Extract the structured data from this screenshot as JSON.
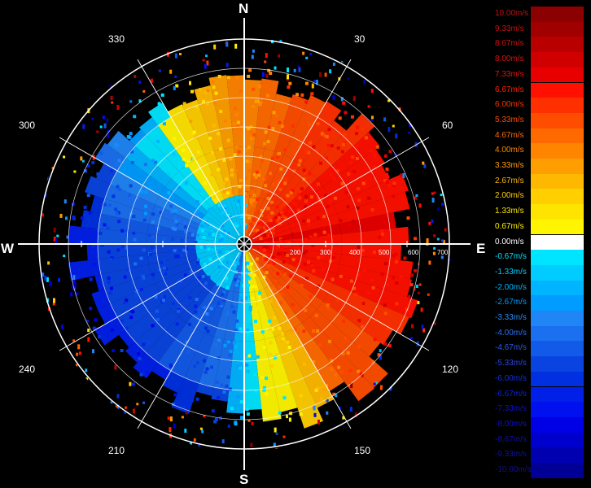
{
  "compass": {
    "north": "N",
    "east": "E",
    "south": "S",
    "west": "W"
  },
  "bearings": {
    "b30": "30",
    "b60": "60",
    "b120": "120",
    "b150": "150",
    "b210": "210",
    "b240": "240",
    "b300": "300",
    "b330": "330"
  },
  "ranges": {
    "r200": "200",
    "r300": "300",
    "r400": "400",
    "r500": "500",
    "r600": "600",
    "r700": "700"
  },
  "legend": [
    {
      "label": "10.00m/s",
      "color": "#8b0000",
      "text_color": "#c41010"
    },
    {
      "label": "9.33m/s",
      "color": "#a10000",
      "text_color": "#c41010"
    },
    {
      "label": "8.67m/s",
      "color": "#b80000",
      "text_color": "#d01010"
    },
    {
      "label": "8.00m/s",
      "color": "#d00000",
      "text_color": "#dc1010"
    },
    {
      "label": "7.33m/s",
      "color": "#e80000",
      "text_color": "#e81010"
    },
    {
      "label": "6.67m/s",
      "color": "#ff1000",
      "text_color": "#ff2000"
    },
    {
      "label": "6.00m/s",
      "color": "#ff3000",
      "text_color": "#ff3300"
    },
    {
      "label": "5.33m/s",
      "color": "#ff4d00",
      "text_color": "#ff4d00"
    },
    {
      "label": "4.67m/s",
      "color": "#ff6a00",
      "text_color": "#ff6a00"
    },
    {
      "label": "4.00m/s",
      "color": "#ff8400",
      "text_color": "#ff8800"
    },
    {
      "label": "3.33m/s",
      "color": "#ff9e00",
      "text_color": "#ffa000"
    },
    {
      "label": "2.67m/s",
      "color": "#ffb800",
      "text_color": "#ffba00"
    },
    {
      "label": "2.00m/s",
      "color": "#ffcf00",
      "text_color": "#ffd000"
    },
    {
      "label": "1.33m/s",
      "color": "#ffe400",
      "text_color": "#ffe400"
    },
    {
      "label": "0.67m/s",
      "color": "#fff500",
      "text_color": "#fff200"
    },
    {
      "label": "0.00m/s",
      "color": "#ffffff",
      "text_color": "#ffffff"
    },
    {
      "label": "-0.67m/s",
      "color": "#00e5ff",
      "text_color": "#00e0ff"
    },
    {
      "label": "-1.33m/s",
      "color": "#00ccff",
      "text_color": "#00ccff"
    },
    {
      "label": "-2.00m/s",
      "color": "#00b4ff",
      "text_color": "#00b4ff"
    },
    {
      "label": "-2.67m/s",
      "color": "#009cff",
      "text_color": "#009cff"
    },
    {
      "label": "-3.33m/s",
      "color": "#2086f5",
      "text_color": "#2a8af5"
    },
    {
      "label": "-4.00m/s",
      "color": "#1a70ef",
      "text_color": "#2a70ef"
    },
    {
      "label": "-4.67m/s",
      "color": "#125ae8",
      "text_color": "#2a5ae8"
    },
    {
      "label": "-5.33m/s",
      "color": "#0a44e0",
      "text_color": "#2a44e0"
    },
    {
      "label": "-6.00m/s",
      "color": "#0030e0",
      "text_color": "#1030e0"
    },
    {
      "label": "-6.67m/s",
      "color": "#0020e8",
      "text_color": "#1020e0"
    },
    {
      "label": "-7.33m/s",
      "color": "#0010ee",
      "text_color": "#1010d0"
    },
    {
      "label": "-8.00m/s",
      "color": "#0000e6",
      "text_color": "#1010c0"
    },
    {
      "label": "-8.67m/s",
      "color": "#0000cc",
      "text_color": "#1010b0"
    },
    {
      "label": "-9.33m/s",
      "color": "#0000b0",
      "text_color": "#1010a0"
    },
    {
      "label": "-10.00m/s",
      "color": "#000096",
      "text_color": "#101090"
    }
  ]
}
